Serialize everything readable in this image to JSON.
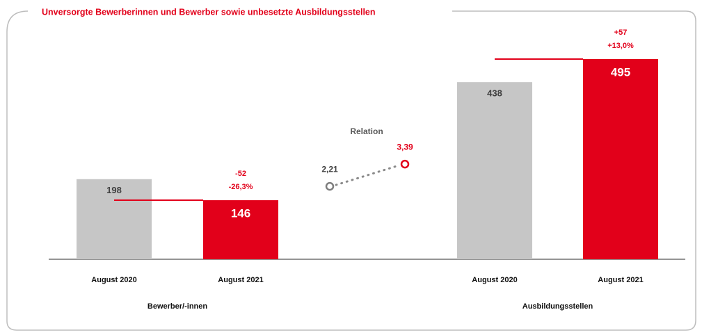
{
  "chart_data": {
    "type": "bar",
    "title": "Unversorgte Bewerberinnen und Bewerber sowie unbesetzte Ausbildungsstellen",
    "colors": [
      "#c6c6c6",
      "#e2001a"
    ],
    "groups": [
      {
        "name": "Bewerber/-innen",
        "categories": [
          "August 2020",
          "August 2021"
        ],
        "values": [
          198,
          146
        ],
        "change": {
          "values": [
            -52,
            -26.3
          ],
          "value_labels": [
            "-52",
            "-26,3%"
          ]
        }
      },
      {
        "name": "Ausbildungsstellen",
        "categories": [
          "August 2020",
          "August 2021"
        ],
        "values": [
          438,
          495
        ],
        "change": {
          "values": [
            57,
            13.0
          ],
          "value_labels": [
            "+57",
            "+13,0%"
          ]
        }
      }
    ],
    "relation": {
      "label": "Relation",
      "values": [
        2.21,
        3.39
      ],
      "value_labels": [
        "2,21",
        "3,39"
      ],
      "colors": [
        "#7f7f7f",
        "#e2001a"
      ]
    }
  }
}
